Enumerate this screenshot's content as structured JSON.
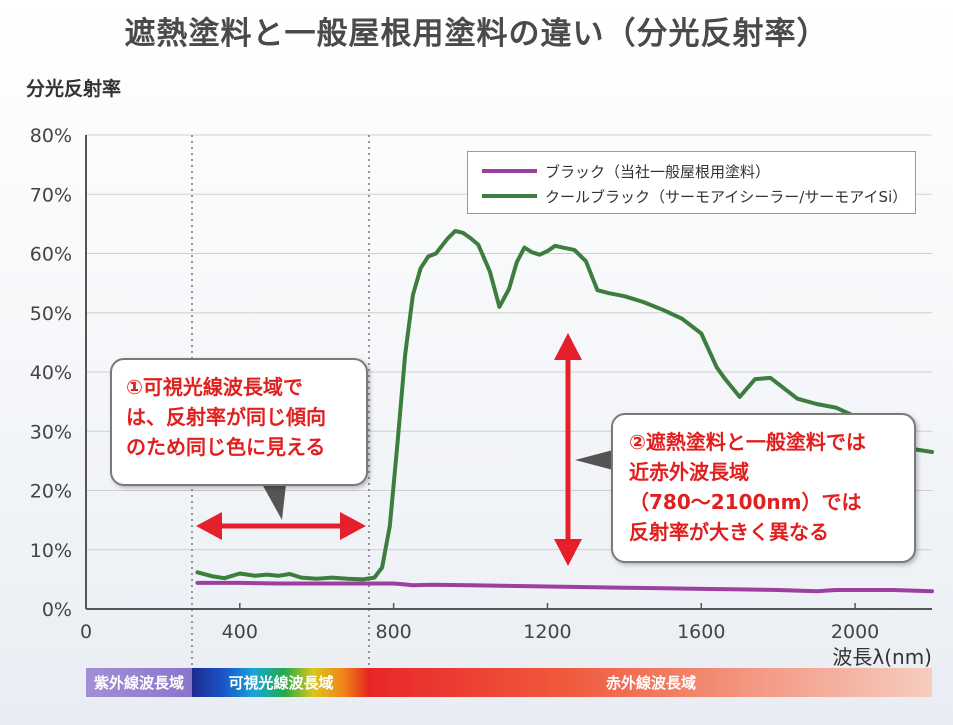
{
  "title": "遮熱塗料と一般屋根用塗料の違い（分光反射率）",
  "chart_data": {
    "type": "line",
    "ylabel": "分光反射率",
    "xlabel": "波長λ(nm)",
    "xlim": [
      0,
      2200
    ],
    "ylim": [
      0,
      80
    ],
    "x_ticks": [
      0,
      400,
      800,
      1200,
      1600,
      2000
    ],
    "x_tick_labels": [
      "0",
      "400",
      "800",
      "1200",
      "1600",
      "2000"
    ],
    "y_ticks": [
      0,
      10,
      20,
      30,
      40,
      50,
      60,
      70,
      80
    ],
    "y_tick_labels": [
      "0%",
      "10%",
      "20%",
      "30%",
      "40%",
      "50%",
      "60%",
      "70%",
      "80%"
    ],
    "grid": "horizontal",
    "legend_position": "top-right",
    "series": [
      {
        "name": "ブラック（当社一般屋根用塗料）",
        "color": "#9b3fa0",
        "x": [
          290,
          400,
          500,
          600,
          700,
          780,
          800,
          820,
          850,
          900,
          1000,
          1100,
          1200,
          1300,
          1400,
          1500,
          1600,
          1700,
          1800,
          1900,
          1950,
          2000,
          2100,
          2200
        ],
        "y": [
          4.4,
          4.4,
          4.3,
          4.3,
          4.3,
          4.3,
          4.3,
          4.2,
          4.0,
          4.1,
          4.0,
          3.9,
          3.8,
          3.7,
          3.6,
          3.5,
          3.4,
          3.3,
          3.2,
          3.0,
          3.2,
          3.2,
          3.2,
          3.0
        ]
      },
      {
        "name": "クールブラック（サーモアイシーラー/サーモアイSi）",
        "color": "#3d7d3e",
        "x": [
          290,
          330,
          360,
          400,
          440,
          470,
          500,
          530,
          560,
          600,
          640,
          680,
          720,
          750,
          770,
          790,
          810,
          830,
          850,
          870,
          890,
          910,
          940,
          960,
          980,
          1000,
          1020,
          1050,
          1075,
          1100,
          1120,
          1140,
          1160,
          1180,
          1200,
          1220,
          1240,
          1270,
          1300,
          1330,
          1360,
          1400,
          1450,
          1500,
          1550,
          1600,
          1640,
          1660,
          1700,
          1740,
          1780,
          1850,
          1900,
          1950,
          2000,
          2050,
          2100,
          2150,
          2200
        ],
        "y": [
          6.2,
          5.5,
          5.2,
          6.0,
          5.6,
          5.8,
          5.6,
          5.9,
          5.3,
          5.1,
          5.3,
          5.1,
          5.0,
          5.3,
          7.0,
          14.0,
          28.0,
          43.0,
          53.0,
          57.5,
          59.5,
          60.0,
          62.5,
          63.8,
          63.5,
          62.6,
          61.5,
          57.0,
          51.0,
          54.0,
          58.5,
          61.0,
          60.2,
          59.8,
          60.4,
          61.3,
          61.0,
          60.6,
          58.7,
          53.8,
          53.3,
          52.8,
          51.8,
          50.5,
          49.0,
          46.5,
          40.8,
          39.0,
          35.8,
          38.8,
          39.0,
          35.5,
          34.6,
          34.0,
          32.5,
          31.0,
          29.0,
          27.0,
          26.5
        ]
      }
    ]
  },
  "legend": {
    "black_label": "ブラック（当社一般屋根用塗料）",
    "cool_label": "クールブラック（サーモアイシーラー/サーモアイSi）"
  },
  "callout1": {
    "lines": [
      "①可視光線波長域で",
      "は、反射率が同じ傾向",
      "のため同じ色に見える"
    ]
  },
  "callout2": {
    "lines": [
      "②遮熱塗料と一般塗料では",
      "近赤外波長域",
      "（780～2100nm）では",
      "反射率が大きく異なる"
    ]
  },
  "bands": {
    "uv": "紫外線波長域",
    "visible": "可視光線波長域",
    "ir": "赤外線波長域"
  },
  "colors": {
    "arrow": "#e5202a",
    "grid": "#cfcfcf",
    "axis": "#555555"
  }
}
